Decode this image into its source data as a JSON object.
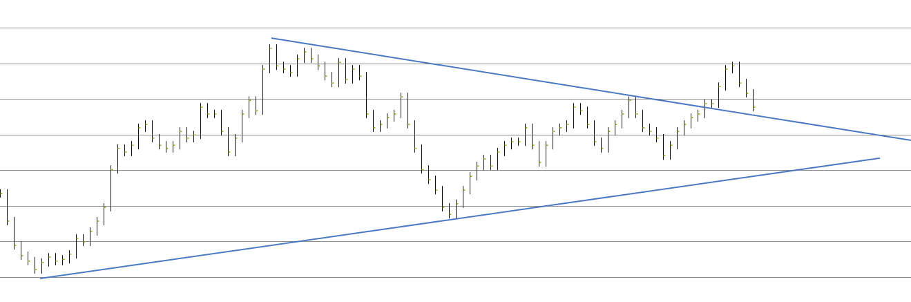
{
  "chart_data": {
    "type": "price-bars",
    "values": [
      3.35,
      2.57,
      1.89,
      1.6,
      1.45,
      1.21,
      1.41,
      1.56,
      1.45,
      1.5,
      1.64,
      2.09,
      1.99,
      2.28,
      2.57,
      2.96,
      4.02,
      4.61,
      4.51,
      4.7,
      5.19,
      5.29,
      4.9,
      4.7,
      4.61,
      4.7,
      5.09,
      4.9,
      4.99,
      5.77,
      5.58,
      5.58,
      5.09,
      4.51,
      4.9,
      5.58,
      5.96,
      5.67,
      6.84,
      7.42,
      6.93,
      6.84,
      6.74,
      7.13,
      7.32,
      7.13,
      6.93,
      6.64,
      6.45,
      7.03,
      6.55,
      6.84,
      6.64,
      5.58,
      5.19,
      5.29,
      5.48,
      5.58,
      6.06,
      5.29,
      4.61,
      4.02,
      3.73,
      3.44,
      2.96,
      2.76,
      3.06,
      3.44,
      3.83,
      4.12,
      4.32,
      4.12,
      4.51,
      4.7,
      4.8,
      4.8,
      5.19,
      4.7,
      4.22,
      4.7,
      5.09,
      5.19,
      5.29,
      5.77,
      5.67,
      5.29,
      4.8,
      4.61,
      5.09,
      5.29,
      5.58,
      5.96,
      5.58,
      5.19,
      5.09,
      4.9,
      4.41,
      4.7,
      5.09,
      5.29,
      5.48,
      5.58,
      5.87,
      5.87,
      6.35,
      6.84,
      6.93,
      6.45,
      6.16,
      5.77
    ],
    "color": "#111111",
    "tick_color": "#8fae1b",
    "xlim": [
      0,
      131.9
    ],
    "ylim": [
      0.3,
      8.78
    ],
    "yticks": [
      1,
      2,
      3,
      4,
      5,
      6,
      7,
      8
    ],
    "grid": true,
    "grid_color": "#8c8c8c",
    "trendlines": [
      {
        "x": [
          39.3,
          131.9
        ],
        "y": [
          7.71,
          4.84
        ]
      },
      {
        "x": [
          5.8,
          127.4
        ],
        "y": [
          0.96,
          4.34
        ]
      }
    ],
    "trendline_color": "#4a78c2"
  }
}
